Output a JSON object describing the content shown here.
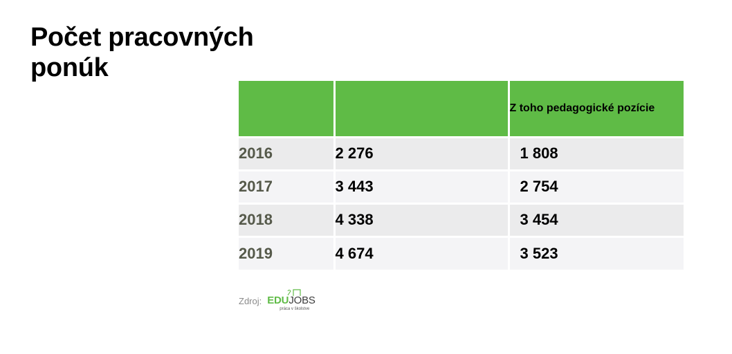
{
  "title": "Počet pracovných ponúk",
  "table": {
    "headers": [
      "",
      "",
      "Z toho pedagogické pozície"
    ],
    "rows": [
      {
        "year": "2016",
        "total": "2 276",
        "pedagogical": "1 808"
      },
      {
        "year": "2017",
        "total": "3 443",
        "pedagogical": "2 754"
      },
      {
        "year": "2018",
        "total": "4 338",
        "pedagogical": "3 454"
      },
      {
        "year": "2019",
        "total": "4 674",
        "pedagogical": "3 523"
      }
    ]
  },
  "source": {
    "label": "Zdroj:",
    "logo_part1": "EDU",
    "logo_part2": "JOBS",
    "tagline": "práca v školstve"
  },
  "colors": {
    "header_green": "#5fbb46",
    "row_odd": "#ebebec",
    "row_even": "#f4f4f6",
    "year_text": "#55594a"
  }
}
